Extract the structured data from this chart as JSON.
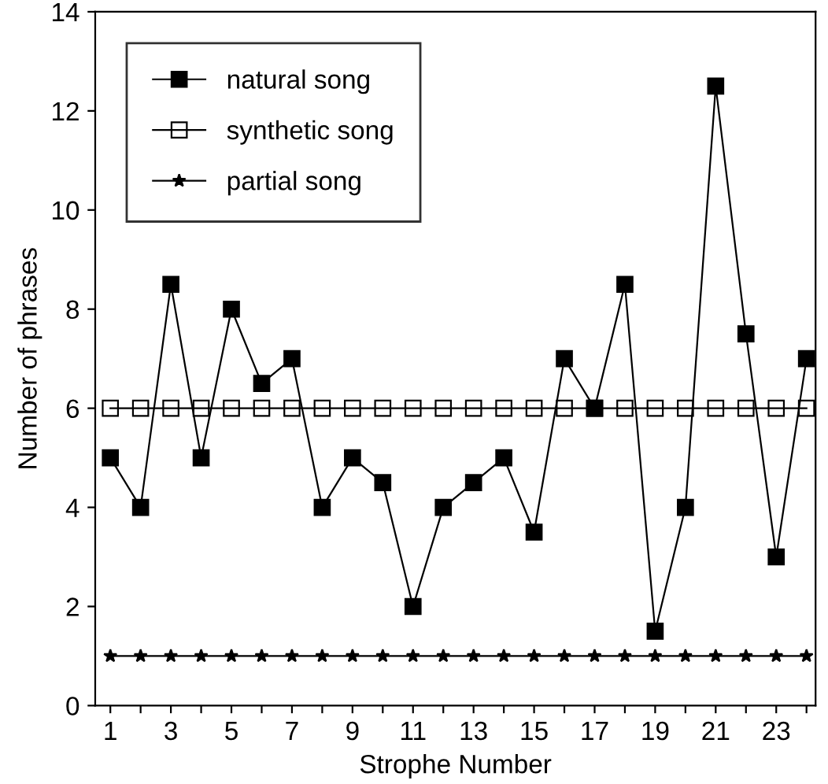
{
  "chart_data": {
    "type": "line",
    "xlabel": "Strophe Number",
    "ylabel": "Number of phrases",
    "x": [
      1,
      2,
      3,
      4,
      5,
      6,
      7,
      8,
      9,
      10,
      11,
      12,
      13,
      14,
      15,
      16,
      17,
      18,
      19,
      20,
      21,
      22,
      23,
      24
    ],
    "series": [
      {
        "name": "natural song",
        "color": "#000000",
        "marker": "square",
        "values": [
          5,
          4,
          8.5,
          5,
          8,
          6.5,
          7,
          4,
          5,
          4.5,
          2,
          4,
          4.5,
          5,
          3.5,
          7,
          6,
          8.5,
          1.5,
          4,
          12.5,
          7.5,
          3,
          7
        ]
      },
      {
        "name": "synthetic song",
        "color": "#000000",
        "marker": "square",
        "values": [
          6,
          6,
          6,
          6,
          6,
          6,
          6,
          6,
          6,
          6,
          6,
          6,
          6,
          6,
          6,
          6,
          6,
          6,
          6,
          6,
          6,
          6,
          6,
          6
        ]
      },
      {
        "name": "partial song",
        "color": "#000000",
        "marker": "star",
        "values": [
          1,
          1,
          1,
          1,
          1,
          1,
          1,
          1,
          1,
          1,
          1,
          1,
          1,
          1,
          1,
          1,
          1,
          1,
          1,
          1,
          1,
          1,
          1,
          1
        ]
      }
    ],
    "xlim": [
      0.5,
      24.3
    ],
    "ylim": [
      0,
      14
    ],
    "xticks": [
      1,
      {
        "value": 2,
        "label": null
      },
      3,
      {
        "value": 4,
        "label": null
      },
      5,
      {
        "value": 6,
        "label": null
      },
      7,
      {
        "value": 8,
        "label": null
      },
      9,
      {
        "value": 10,
        "label": null
      },
      11,
      {
        "value": 12,
        "label": null
      },
      13,
      {
        "value": 14,
        "label": null
      },
      15,
      {
        "value": 16,
        "label": null
      },
      17,
      {
        "value": 18,
        "label": null
      },
      19,
      {
        "value": 20,
        "label": null
      },
      21,
      {
        "value": 22,
        "label": null
      },
      23,
      {
        "value": 24,
        "label": null
      }
    ],
    "yticks": [
      0,
      2,
      4,
      6,
      8,
      10,
      12,
      14
    ],
    "grid": false,
    "legend": "top left",
    "line_style": "solid"
  }
}
